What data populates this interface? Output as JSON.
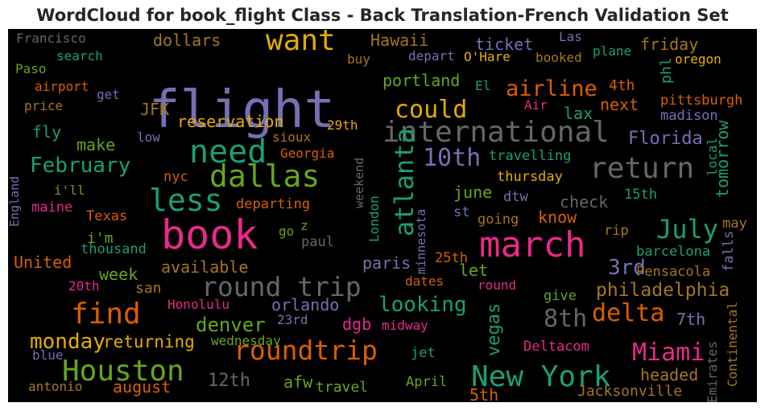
{
  "chart_data": {
    "type": "wordcloud",
    "title": "WordCloud for book_flight Class - Back Translation-French Validation Set",
    "background": "#000000",
    "colormap": "Dark2",
    "palette": {
      "teal": "#1b9e77",
      "orange": "#d95f02",
      "purple": "#7570b3",
      "pink": "#e7298a",
      "green": "#66a61e",
      "gold": "#e6ab02",
      "brown": "#a6761d",
      "gray": "#666666"
    },
    "words": [
      {
        "text": "flight",
        "color": "#7570b3"
      },
      {
        "text": "book",
        "color": "#e7298a"
      },
      {
        "text": "march",
        "color": "#e7298a"
      },
      {
        "text": "international",
        "color": "#666666"
      },
      {
        "text": "round trip",
        "color": "#666666"
      },
      {
        "text": "New York",
        "color": "#1b9e77"
      },
      {
        "text": "need",
        "color": "#1b9e77"
      },
      {
        "text": "roundtrip",
        "color": "#d95f02"
      },
      {
        "text": "Houston",
        "color": "#66a61e"
      },
      {
        "text": "dallas",
        "color": "#66a61e"
      },
      {
        "text": "want",
        "color": "#e6ab02"
      },
      {
        "text": "return",
        "color": "#666666"
      },
      {
        "text": "less",
        "color": "#1b9e77"
      },
      {
        "text": "find",
        "color": "#d95f02"
      },
      {
        "text": "atlanta",
        "color": "#1b9e77"
      },
      {
        "text": "could",
        "color": "#e6ab02"
      },
      {
        "text": "Miami",
        "color": "#e7298a"
      },
      {
        "text": "delta",
        "color": "#d95f02"
      },
      {
        "text": "8th",
        "color": "#666666"
      },
      {
        "text": "10th",
        "color": "#7570b3"
      },
      {
        "text": "July",
        "color": "#1b9e77"
      },
      {
        "text": "airline",
        "color": "#d95f02"
      },
      {
        "text": "February",
        "color": "#1b9e77"
      },
      {
        "text": "monday",
        "color": "#e6ab02"
      },
      {
        "text": "looking",
        "color": "#1b9e77"
      },
      {
        "text": "3rd",
        "color": "#7570b3"
      },
      {
        "text": "denver",
        "color": "#66a61e"
      },
      {
        "text": "philadelphia",
        "color": "#a6761d"
      },
      {
        "text": "returning",
        "color": "#e6ab02"
      },
      {
        "text": "reservation",
        "color": "#e6ab02"
      },
      {
        "text": "available",
        "color": "#a6761d"
      },
      {
        "text": "dollars",
        "color": "#a6761d"
      },
      {
        "text": "Florida",
        "color": "#7570b3"
      },
      {
        "text": "United",
        "color": "#d95f02"
      },
      {
        "text": "orlando",
        "color": "#7570b3"
      },
      {
        "text": "portland",
        "color": "#66a61e"
      },
      {
        "text": "ticket",
        "color": "#7570b3"
      },
      {
        "text": "friday",
        "color": "#a6761d"
      },
      {
        "text": "make",
        "color": "#66a61e"
      },
      {
        "text": "august",
        "color": "#d95f02"
      },
      {
        "text": "12th",
        "color": "#666666"
      },
      {
        "text": "vegas",
        "color": "#1b9e77"
      },
      {
        "text": "headed",
        "color": "#a6761d"
      },
      {
        "text": "Hawaii",
        "color": "#a6761d"
      },
      {
        "text": "week",
        "color": "#66a61e"
      },
      {
        "text": "fly",
        "color": "#1b9e77"
      },
      {
        "text": "next",
        "color": "#d95f02"
      },
      {
        "text": "lax",
        "color": "#1b9e77"
      },
      {
        "text": "JFK",
        "color": "#a6761d"
      },
      {
        "text": "i'm",
        "color": "#66a61e"
      },
      {
        "text": "san",
        "color": "#a6761d"
      },
      {
        "text": "paris",
        "color": "#7570b3"
      },
      {
        "text": "june",
        "color": "#66a61e"
      },
      {
        "text": "let",
        "color": "#66a61e"
      },
      {
        "text": "check",
        "color": "#666666"
      },
      {
        "text": "know",
        "color": "#d95f02"
      },
      {
        "text": "tomorrow",
        "color": "#1b9e77"
      },
      {
        "text": "afw",
        "color": "#66a61e"
      },
      {
        "text": "5th",
        "color": "#d95f02"
      },
      {
        "text": "dgb",
        "color": "#e7298a"
      },
      {
        "text": "7th",
        "color": "#7570b3"
      },
      {
        "text": "phl",
        "color": "#1b9e77"
      },
      {
        "text": "4th",
        "color": "#d95f02"
      },
      {
        "text": "travel",
        "color": "#66a61e"
      },
      {
        "text": "Jacksonville",
        "color": "#a6761d"
      },
      {
        "text": "Deltacom",
        "color": "#e7298a"
      },
      {
        "text": "thursday",
        "color": "#e6ab02"
      },
      {
        "text": "travelling",
        "color": "#1b9e77"
      },
      {
        "text": "departing",
        "color": "#d95f02"
      },
      {
        "text": "pittsburgh",
        "color": "#d95f02"
      },
      {
        "text": "madison",
        "color": "#7570b3"
      },
      {
        "text": "Pensacola",
        "color": "#a6761d"
      },
      {
        "text": "barcelona",
        "color": "#1b9e77"
      },
      {
        "text": "Continental",
        "color": "#a6761d"
      },
      {
        "text": "Emirates",
        "color": "#666666"
      },
      {
        "text": "falls",
        "color": "#7570b3"
      },
      {
        "text": "may",
        "color": "#a6761d"
      },
      {
        "text": "rip",
        "color": "#a6761d"
      },
      {
        "text": "15th",
        "color": "#1b9e77"
      },
      {
        "text": "going",
        "color": "#a6761d"
      },
      {
        "text": "dtw",
        "color": "#7570b3"
      },
      {
        "text": "st",
        "color": "#7570b3"
      },
      {
        "text": "25th",
        "color": "#d95f02"
      },
      {
        "text": "round",
        "color": "#e7298a"
      },
      {
        "text": "dates",
        "color": "#d95f02"
      },
      {
        "text": "give",
        "color": "#66a61e"
      },
      {
        "text": "midway",
        "color": "#e7298a"
      },
      {
        "text": "jet",
        "color": "#1b9e77"
      },
      {
        "text": "April",
        "color": "#66a61e"
      },
      {
        "text": "Honolulu",
        "color": "#e7298a"
      },
      {
        "text": "23rd",
        "color": "#7570b3"
      },
      {
        "text": "wednesday",
        "color": "#66a61e"
      },
      {
        "text": "20th",
        "color": "#e7298a"
      },
      {
        "text": "thousand",
        "color": "#1b9e77"
      },
      {
        "text": "blue",
        "color": "#7570b3"
      },
      {
        "text": "antonio",
        "color": "#a6761d"
      },
      {
        "text": "Texas",
        "color": "#d95f02"
      },
      {
        "text": "maine",
        "color": "#e7298a"
      },
      {
        "text": "i'll",
        "color": "#66a61e"
      },
      {
        "text": "England",
        "color": "#7570b3"
      },
      {
        "text": "nyc",
        "color": "#d95f02"
      },
      {
        "text": "low",
        "color": "#7570b3"
      },
      {
        "text": "sioux",
        "color": "#a6761d"
      },
      {
        "text": "29th",
        "color": "#e6ab02"
      },
      {
        "text": "Georgia",
        "color": "#d95f02"
      },
      {
        "text": "go",
        "color": "#66a61e"
      },
      {
        "text": "z",
        "color": "#66a61e"
      },
      {
        "text": "paul",
        "color": "#666666"
      },
      {
        "text": "London",
        "color": "#1b9e77"
      },
      {
        "text": "minnesota",
        "color": "#7570b3"
      },
      {
        "text": "weekend",
        "color": "#666666"
      },
      {
        "text": "local",
        "color": "#1b9e77"
      },
      {
        "text": "Air",
        "color": "#e7298a"
      },
      {
        "text": "El",
        "color": "#1b9e77"
      },
      {
        "text": "depart",
        "color": "#7570b3"
      },
      {
        "text": "O'Hare",
        "color": "#e6ab02"
      },
      {
        "text": "booked",
        "color": "#a6761d"
      },
      {
        "text": "buy",
        "color": "#a6761d"
      },
      {
        "text": "Las",
        "color": "#7570b3"
      },
      {
        "text": "plane",
        "color": "#1b9e77"
      },
      {
        "text": "oregon",
        "color": "#e6ab02"
      },
      {
        "text": "Francisco",
        "color": "#666666"
      },
      {
        "text": "Paso",
        "color": "#66a61e"
      },
      {
        "text": "search",
        "color": "#1b9e77"
      },
      {
        "text": "airport",
        "color": "#d95f02"
      },
      {
        "text": "get",
        "color": "#7570b3"
      },
      {
        "text": "price",
        "color": "#a6761d"
      }
    ]
  }
}
